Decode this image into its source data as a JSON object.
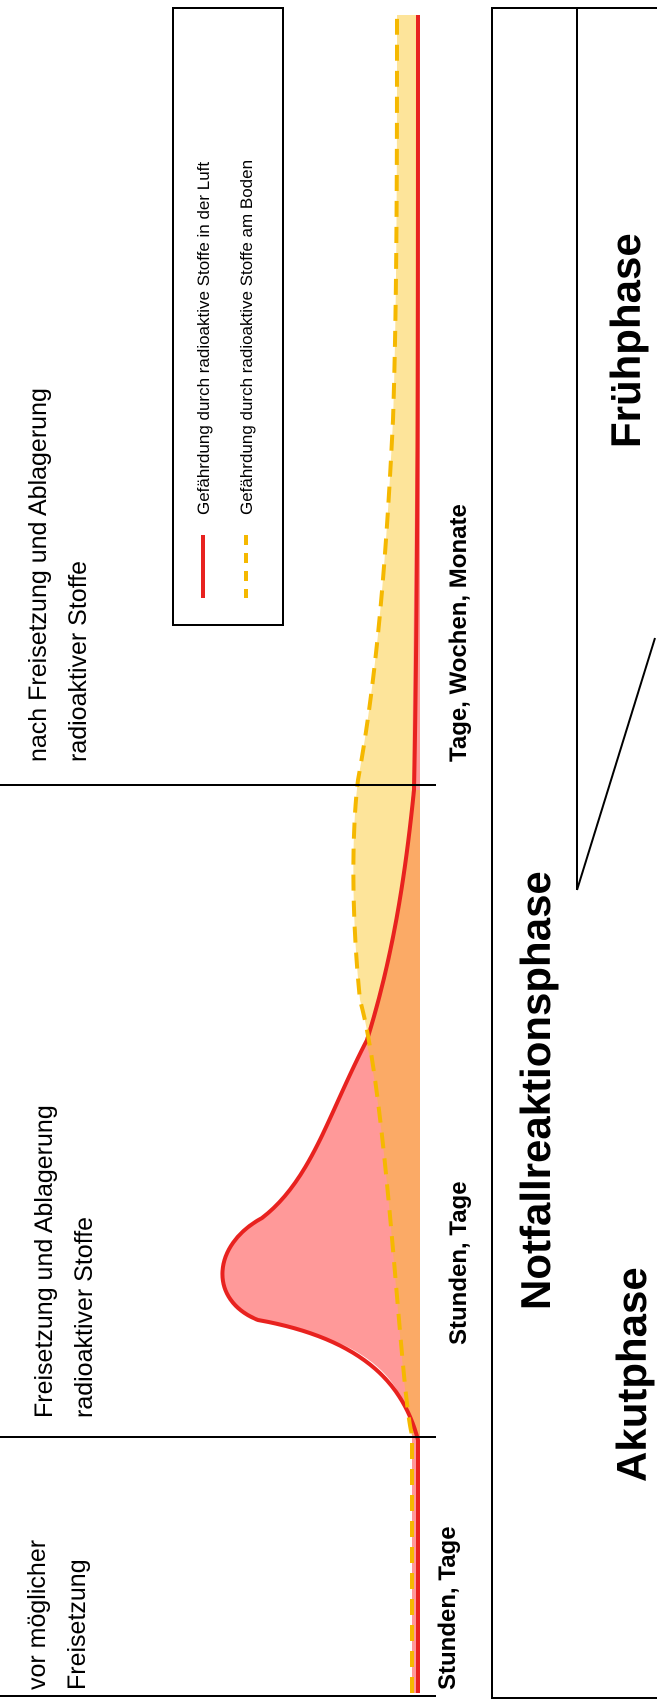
{
  "phases_top": [
    {
      "label_line1": "vor möglicher",
      "label_line2": "Freisetzung",
      "time": "Stunden, Tage"
    },
    {
      "label_line1": "Freisetzung und Ablagerung",
      "label_line2": "radioaktiver Stoffe",
      "time": "Stunden, Tage"
    },
    {
      "label_line1": "nach Freisetzung und Ablagerung",
      "label_line2": "radioaktiver Stoffe",
      "time": "Tage, Wochen, Monate"
    }
  ],
  "legend": {
    "air": "Gefährdung durch radioaktive Stoffe in der Luft",
    "ground": "Gefährdung durch radioaktive Stoffe am Boden"
  },
  "bottom": {
    "notfall": "Notfallreaktionsphase",
    "akut": "Akutphase",
    "frueh": "Frühphase"
  },
  "colors": {
    "air_line": "#e8221f",
    "air_fill": "#ff9999",
    "ground_line": "#f5b800",
    "ground_fill": "#fde49a",
    "overlap_fill": "#fbaa66"
  }
}
